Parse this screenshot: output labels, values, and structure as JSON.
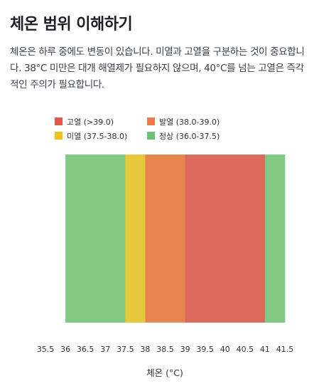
{
  "page": {
    "title": "체온 범위 이해하기",
    "description": "체온은 하루 중에도 변동이 있습니다. 미열과 고열을 구분하는 것이 중요합니다. 38°C 미만은 대개 해열제가 필요하지 않으며, 40°C를 넘는 고열은 즉각적인 주의가 필요합니다."
  },
  "chart_data": {
    "type": "bar",
    "orientation": "horizontal-ranges",
    "xlabel": "체온 (°C)",
    "xlim": [
      35.5,
      41.5
    ],
    "xticks": [
      "35.5",
      "36",
      "36.5",
      "37",
      "37.5",
      "38",
      "38.5",
      "39",
      "39.5",
      "40",
      "40.5",
      "41",
      "41.5"
    ],
    "legend": [
      {
        "key": "high",
        "label": "고열 (>39.0)",
        "color": "#e2574c"
      },
      {
        "key": "fever",
        "label": "발열 (38.0-39.0)",
        "color": "#ee7a49"
      },
      {
        "key": "mild",
        "label": "미열 (37.5-38.0)",
        "color": "#f0c21f"
      },
      {
        "key": "normal",
        "label": "정상 (36.0-37.5)",
        "color": "#6cc272"
      }
    ],
    "series": [
      {
        "key": "normal",
        "name": "정상 (36.0-37.5)",
        "start": 36.0,
        "end": 37.5,
        "color": "#82c986"
      },
      {
        "key": "mild",
        "name": "미열 (37.5-38.0)",
        "start": 37.5,
        "end": 38.0,
        "color": "#e6c93b"
      },
      {
        "key": "fever",
        "name": "발열 (38.0-39.0)",
        "start": 38.0,
        "end": 39.0,
        "color": "#e8844f"
      },
      {
        "key": "high",
        "name": "고열 (>39.0)",
        "start": 39.0,
        "end": 41.0,
        "color": "#dc6a5c"
      },
      {
        "key": "normal-edge",
        "name": "",
        "start": 41.0,
        "end": 41.5,
        "color": "#82c986"
      }
    ],
    "legend_position": "top-left",
    "grid": false
  }
}
